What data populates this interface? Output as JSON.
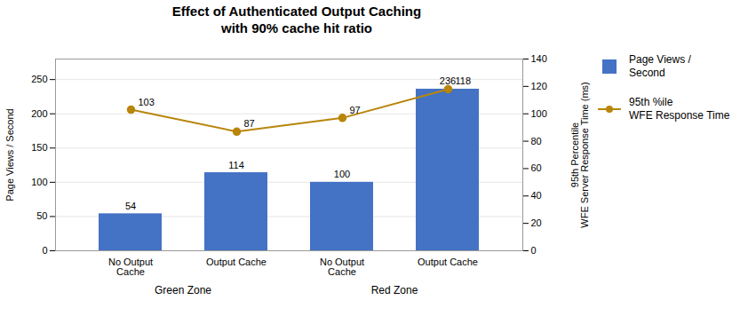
{
  "chart_data": {
    "type": "bar",
    "title": "Effect of Authenticated Output Caching\nwith 90% cache hit ratio",
    "categories": [
      "No Output\nCache",
      "Output Cache",
      "No Output\nCache",
      "Output Cache"
    ],
    "groups": [
      "Green Zone",
      "Red Zone"
    ],
    "ylabel": "Page Views / Second",
    "y2label": "95th Percentile\nWFE Server Response Time (ms)",
    "ylim": [
      0,
      280
    ],
    "yticks": [
      0,
      50,
      100,
      150,
      200,
      250
    ],
    "y2lim": [
      0,
      140
    ],
    "y2ticks": [
      0,
      20,
      40,
      60,
      80,
      100,
      120,
      140
    ],
    "grid": true,
    "legend": "right",
    "data_labels": true,
    "series": [
      {
        "name": "Page Views /\nSecond",
        "type": "bar",
        "color": "#4472C4",
        "values": [
          54,
          114,
          100,
          236
        ]
      },
      {
        "name": "95th %ile\nWFE Response Time",
        "type": "line",
        "axis": "y2",
        "color": "#B8860B",
        "marker": "circle",
        "values": [
          103,
          87,
          97,
          118
        ]
      }
    ]
  }
}
